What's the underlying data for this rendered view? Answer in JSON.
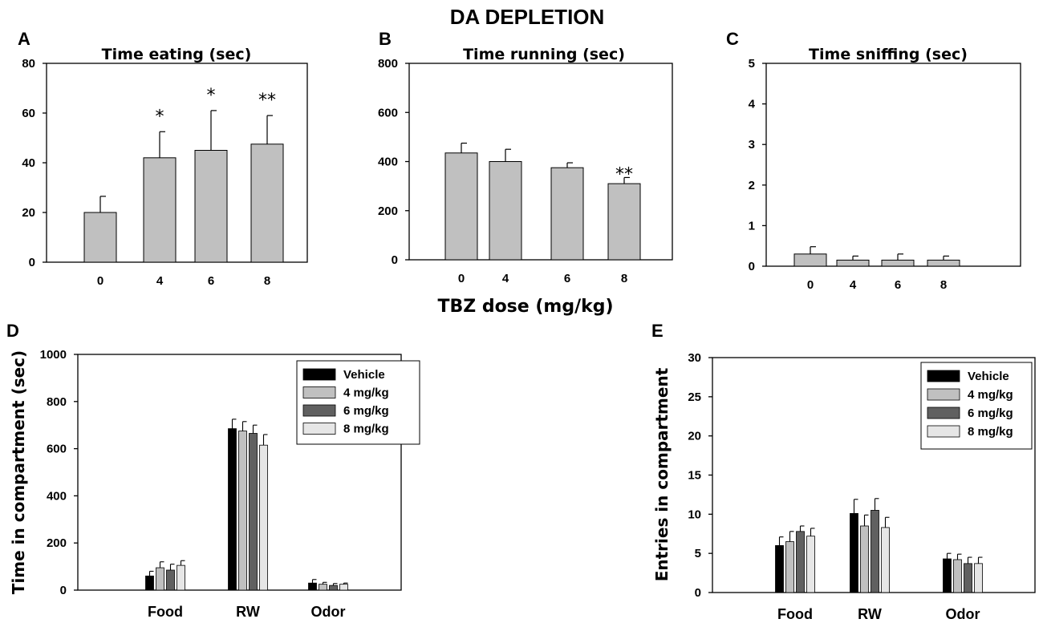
{
  "figure_title": "DA DEPLETION",
  "shared_xlabel": "TBZ dose (mg/kg)",
  "colors": {
    "bar_gray": "#c0c0c0",
    "vehicle": "#000000",
    "mg4": "#c0c0c0",
    "mg6": "#606060",
    "mg8": "#e6e6e6",
    "stroke": "#000000"
  },
  "chart_data": [
    {
      "id": "A",
      "panel_label": "A",
      "type": "bar",
      "title": "Time  eating (sec)",
      "xlabel": "",
      "ylabel": "",
      "categories": [
        "0",
        "4",
        "6",
        "8"
      ],
      "values": [
        20,
        42,
        45,
        47.5
      ],
      "errors": [
        6.5,
        10.5,
        16,
        11.5
      ],
      "significance": [
        "",
        "*",
        "*",
        "**"
      ],
      "ylim": [
        0,
        80
      ],
      "yticks": [
        0,
        20,
        40,
        60,
        80
      ]
    },
    {
      "id": "B",
      "panel_label": "B",
      "type": "bar",
      "title": "Time running (sec)",
      "xlabel": "TBZ dose (mg/kg)",
      "ylabel": "",
      "categories": [
        "0",
        "4",
        "6",
        "8"
      ],
      "values": [
        435,
        400,
        375,
        310
      ],
      "errors": [
        40,
        50,
        20,
        25
      ],
      "significance": [
        "",
        "",
        "",
        "**"
      ],
      "ylim": [
        0,
        800
      ],
      "yticks": [
        0,
        200,
        400,
        600,
        800
      ]
    },
    {
      "id": "C",
      "panel_label": "C",
      "type": "bar",
      "title": "Time sniffing (sec)",
      "xlabel": "",
      "ylabel": "",
      "categories": [
        "0",
        "4",
        "6",
        "8"
      ],
      "values": [
        0.3,
        0.15,
        0.15,
        0.15
      ],
      "errors": [
        0.18,
        0.1,
        0.15,
        0.1
      ],
      "significance": [
        "",
        "",
        "",
        ""
      ],
      "ylim": [
        0,
        5
      ],
      "yticks": [
        0,
        1,
        2,
        3,
        4,
        5
      ]
    },
    {
      "id": "D",
      "panel_label": "D",
      "type": "bar",
      "title": "",
      "xlabel": "",
      "ylabel": "Time in compartment (sec)",
      "categories": [
        "Food",
        "RW",
        "Odor"
      ],
      "series": [
        {
          "name": "Vehicle",
          "values": [
            60,
            685,
            30
          ],
          "errors": [
            20,
            40,
            15
          ]
        },
        {
          "name": "4 mg/kg",
          "values": [
            95,
            675,
            25
          ],
          "errors": [
            25,
            40,
            8
          ]
        },
        {
          "name": "6 mg/kg",
          "values": [
            85,
            665,
            20
          ],
          "errors": [
            25,
            35,
            8
          ]
        },
        {
          "name": "8 mg/kg",
          "values": [
            105,
            615,
            25
          ],
          "errors": [
            20,
            45,
            5
          ]
        }
      ],
      "ylim": [
        0,
        1000
      ],
      "yticks": [
        0,
        200,
        400,
        600,
        800,
        1000
      ],
      "legend": "top-right"
    },
    {
      "id": "E",
      "panel_label": "E",
      "type": "bar",
      "title": "",
      "xlabel": "",
      "ylabel": "Entries in compartment",
      "categories": [
        "Food",
        "RW",
        "Odor"
      ],
      "series": [
        {
          "name": "Vehicle",
          "values": [
            6.0,
            10.1,
            4.3
          ],
          "errors": [
            1.1,
            1.8,
            0.7
          ]
        },
        {
          "name": "4 mg/kg",
          "values": [
            6.5,
            8.5,
            4.2
          ],
          "errors": [
            1.3,
            1.4,
            0.7
          ]
        },
        {
          "name": "6 mg/kg",
          "values": [
            7.8,
            10.5,
            3.7
          ],
          "errors": [
            0.7,
            1.5,
            0.8
          ]
        },
        {
          "name": "8 mg/kg",
          "values": [
            7.2,
            8.3,
            3.7
          ],
          "errors": [
            1.0,
            1.3,
            0.8
          ]
        }
      ],
      "ylim": [
        0,
        30
      ],
      "yticks": [
        0,
        5,
        10,
        15,
        20,
        25,
        30
      ],
      "legend": "top-right"
    }
  ]
}
